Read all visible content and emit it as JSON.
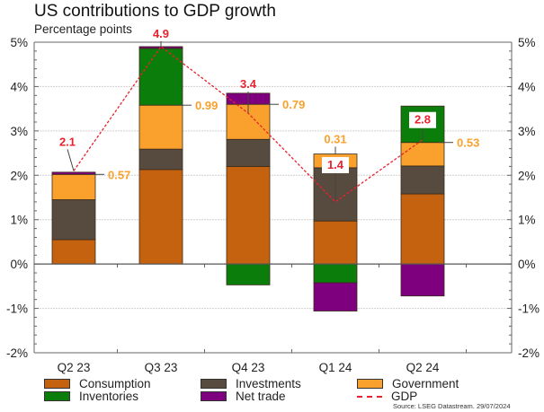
{
  "chart_data": {
    "type": "bar",
    "stacked": true,
    "title": "US contributions to GDP growth",
    "subtitle": "Percentage points",
    "xlabel": "",
    "ylabel": "",
    "ylim": [
      -2,
      5
    ],
    "yticks": [
      -2,
      -1,
      0,
      1,
      2,
      3,
      4,
      5
    ],
    "ytick_labels": [
      "-2%",
      "-1%",
      "0%",
      "1%",
      "2%",
      "3%",
      "4%",
      "5%"
    ],
    "grid": true,
    "categories": [
      "Q2 23",
      "Q3 23",
      "Q4 23",
      "Q1 24",
      "Q2 24"
    ],
    "series": [
      {
        "name": "Consumption",
        "color": "#c5620f",
        "values": [
          0.55,
          2.13,
          2.2,
          0.97,
          1.58
        ]
      },
      {
        "name": "Investments",
        "color": "#574a3e",
        "values": [
          0.9,
          0.46,
          0.61,
          1.2,
          0.63
        ]
      },
      {
        "name": "Government",
        "color": "#f9a12c",
        "values": [
          0.57,
          0.99,
          0.79,
          0.31,
          0.53
        ]
      },
      {
        "name": "Inventories",
        "color": "#0b7d0b",
        "values": [
          0.0,
          1.28,
          -0.47,
          -0.42,
          0.82
        ]
      },
      {
        "name": "Net trade",
        "color": "#7f007f",
        "values": [
          0.05,
          0.04,
          0.25,
          -0.64,
          -0.72
        ]
      }
    ],
    "line": {
      "name": "GDP",
      "color": "#e8222e",
      "style": "dashed",
      "values": [
        2.1,
        4.9,
        3.4,
        1.4,
        2.8
      ]
    },
    "gdp_labels": [
      "2.1",
      "4.9",
      "3.4",
      "1.4",
      "2.8"
    ],
    "government_labels": [
      "0.57",
      "0.99",
      "0.79",
      "0.31",
      "0.53"
    ],
    "legend_position": "bottom",
    "source": "Source: LSEG Datastream. 29/07/2024"
  }
}
